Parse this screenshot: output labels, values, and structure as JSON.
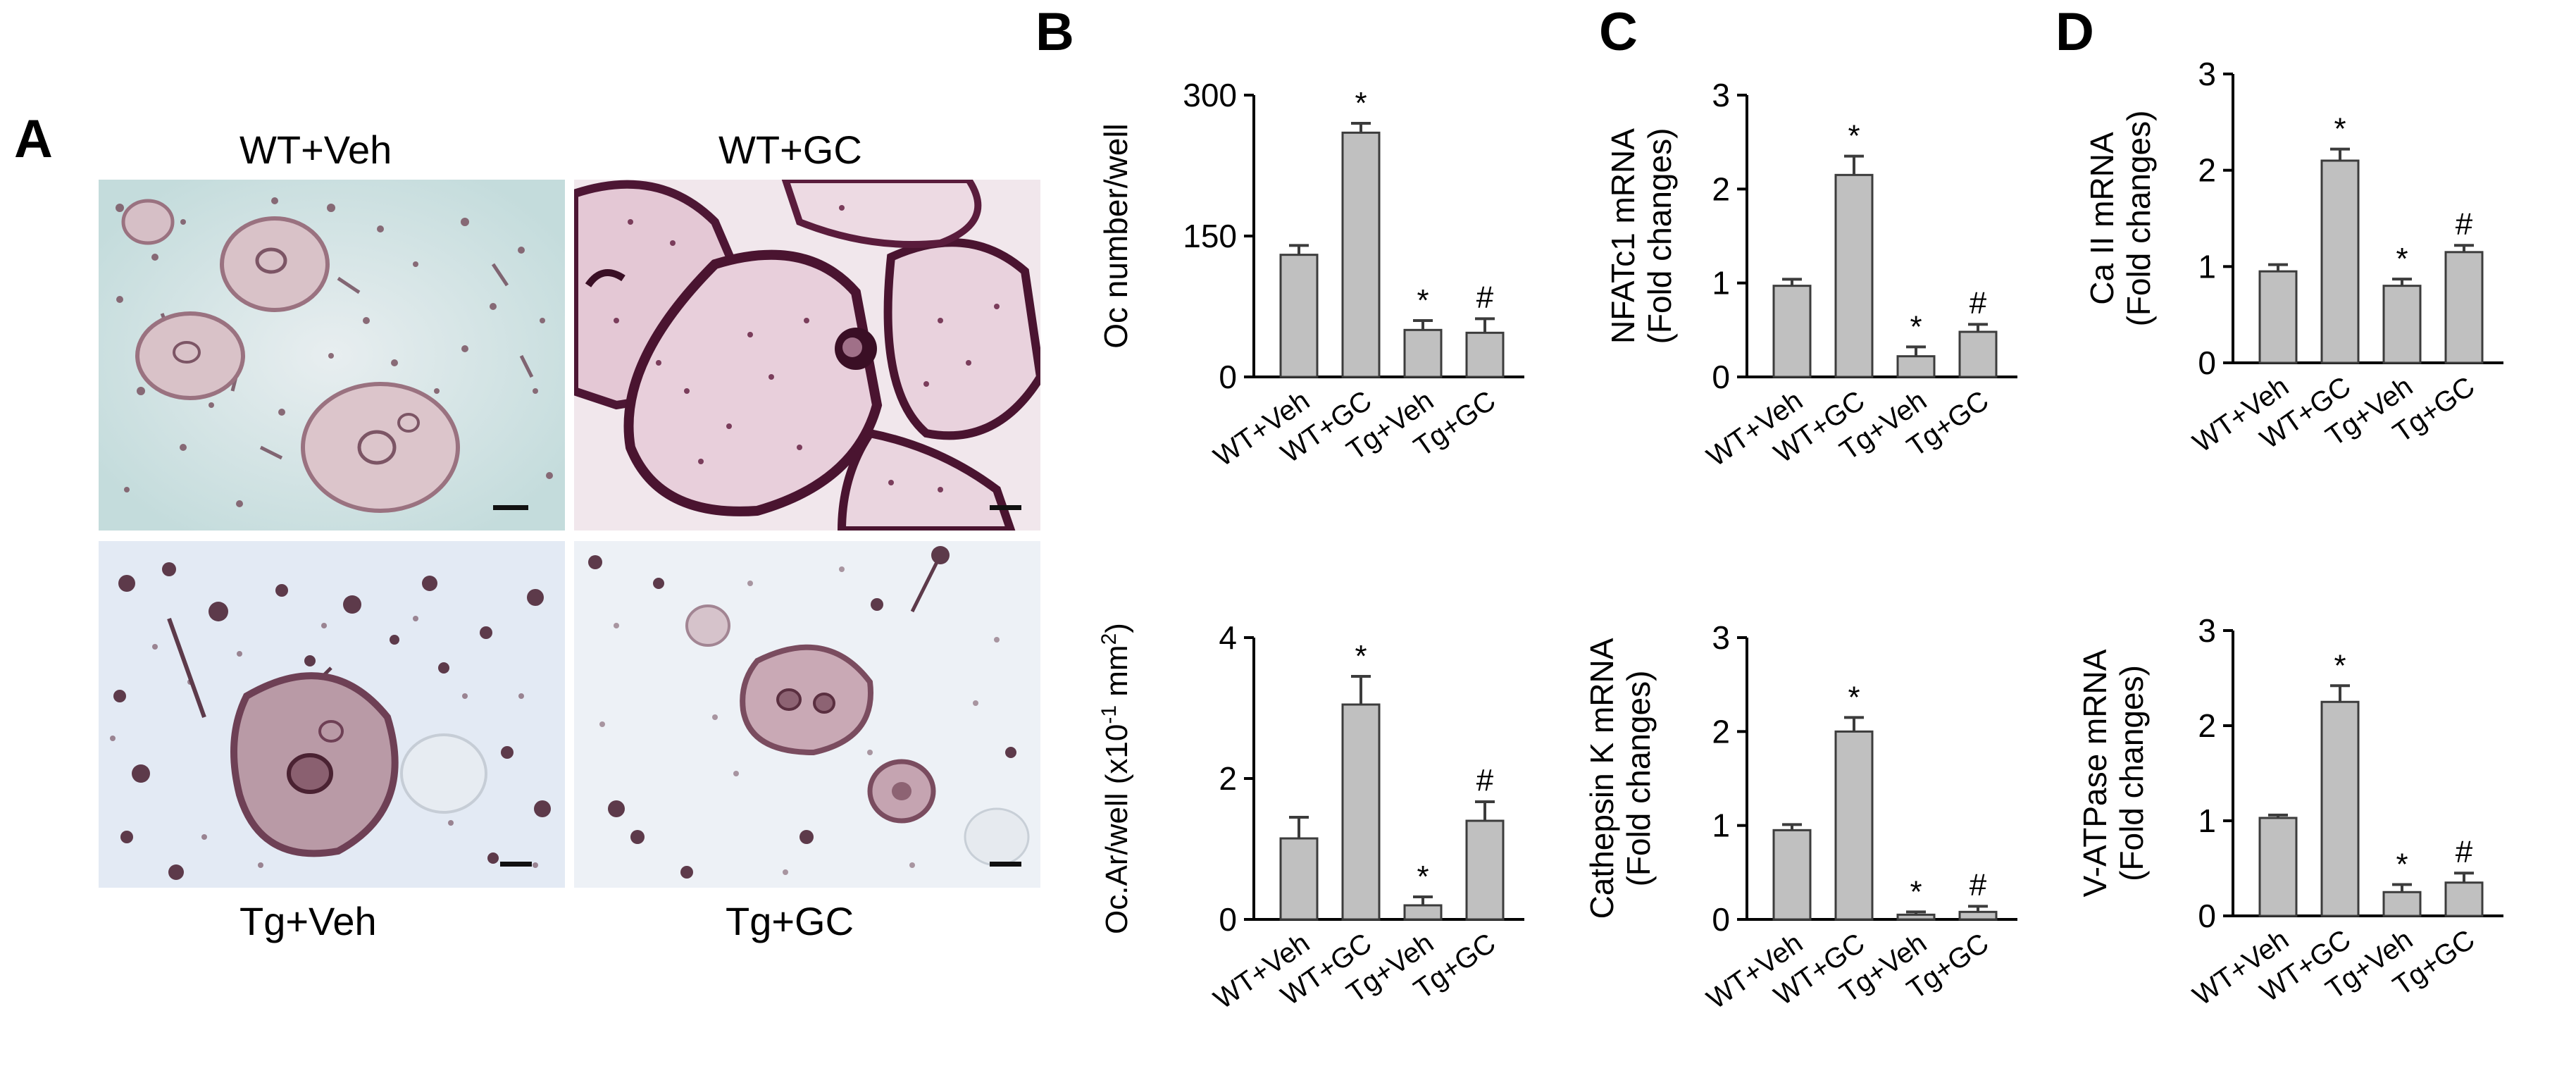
{
  "panels": {
    "A": "A",
    "B": "B",
    "C": "C",
    "D": "D"
  },
  "micrographs": [
    {
      "label": "WT+Veh"
    },
    {
      "label": "WT+GC"
    },
    {
      "label": "Tg+Veh"
    },
    {
      "label": "Tg+GC"
    }
  ],
  "chart_data": [
    {
      "panel": "B",
      "type": "bar",
      "categories": [
        "WT+Veh",
        "WT+GC",
        "Tg+Veh",
        "Tg+GC"
      ],
      "values": [
        130,
        260,
        50,
        47
      ],
      "errors": [
        10,
        10,
        10,
        15
      ],
      "markers": [
        "",
        "*",
        "*",
        "#"
      ],
      "ylabel": "Oc  number/well",
      "ylim": [
        0,
        300
      ],
      "yticks": [
        "0",
        "150",
        "300"
      ]
    },
    {
      "panel": "B",
      "type": "bar",
      "categories": [
        "WT+Veh",
        "WT+GC",
        "Tg+Veh",
        "Tg+GC"
      ],
      "values": [
        1.15,
        3.05,
        0.2,
        1.4
      ],
      "errors": [
        0.3,
        0.4,
        0.12,
        0.27
      ],
      "markers": [
        "",
        "*",
        "*",
        "#"
      ],
      "ylabel": "Oc.Ar/well (x10",
      "ylabel_sup1": "-1",
      "ylabel_mid": " mm",
      "ylabel_sup2": "2",
      "ylabel_end": ")",
      "ylim": [
        0,
        4
      ],
      "yticks": [
        "0",
        "2",
        "4"
      ]
    },
    {
      "panel": "C",
      "type": "bar",
      "categories": [
        "WT+Veh",
        "WT+GC",
        "Tg+Veh",
        "Tg+GC"
      ],
      "values": [
        0.97,
        2.15,
        0.22,
        0.48
      ],
      "errors": [
        0.07,
        0.2,
        0.1,
        0.08
      ],
      "markers": [
        "",
        "*",
        "*",
        "#"
      ],
      "ylabel": "NFATc1 mRNA",
      "ylabel2": "(Fold changes)",
      "ylim": [
        0,
        3
      ],
      "yticks": [
        "0",
        "1",
        "2",
        "3"
      ]
    },
    {
      "panel": "C",
      "type": "bar",
      "categories": [
        "WT+Veh",
        "WT+GC",
        "Tg+Veh",
        "Tg+GC"
      ],
      "values": [
        0.95,
        2.0,
        0.05,
        0.08
      ],
      "errors": [
        0.06,
        0.15,
        0.03,
        0.06
      ],
      "markers": [
        "",
        "*",
        "*",
        "#"
      ],
      "ylabel": "Cathepsin K mRNA",
      "ylabel2": "(Fold changes)",
      "ylim": [
        0,
        3
      ],
      "yticks": [
        "0",
        "1",
        "2",
        "3"
      ]
    },
    {
      "panel": "D",
      "type": "bar",
      "categories": [
        "WT+Veh",
        "WT+GC",
        "Tg+Veh",
        "Tg+GC"
      ],
      "values": [
        0.95,
        2.1,
        0.8,
        1.15
      ],
      "errors": [
        0.07,
        0.12,
        0.07,
        0.07
      ],
      "markers": [
        "",
        "*",
        "*",
        "#"
      ],
      "ylabel": "Ca II mRNA",
      "ylabel2": "(Fold changes)",
      "ylim": [
        0,
        3
      ],
      "yticks": [
        "0",
        "1",
        "2",
        "3"
      ]
    },
    {
      "panel": "D",
      "type": "bar",
      "categories": [
        "WT+Veh",
        "WT+GC",
        "Tg+Veh",
        "Tg+GC"
      ],
      "values": [
        1.03,
        2.25,
        0.25,
        0.35
      ],
      "errors": [
        0.03,
        0.17,
        0.08,
        0.1
      ],
      "markers": [
        "",
        "*",
        "*",
        "#"
      ],
      "ylabel": "V-ATPase mRNA",
      "ylabel2": "(Fold changes)",
      "ylim": [
        0,
        3
      ],
      "yticks": [
        "0",
        "1",
        "2",
        "3"
      ]
    }
  ],
  "colors": {
    "bar_fill": "#c0c0c0",
    "bar_stroke": "#3c3c3c",
    "axis": "#000000",
    "stain_dark": "#5a2040",
    "stain_light": "#c9a7b0",
    "bg_teal": "#cfe3e3",
    "bg_blue": "#e6ecf3",
    "bg_pink": "#f3e6ee"
  }
}
